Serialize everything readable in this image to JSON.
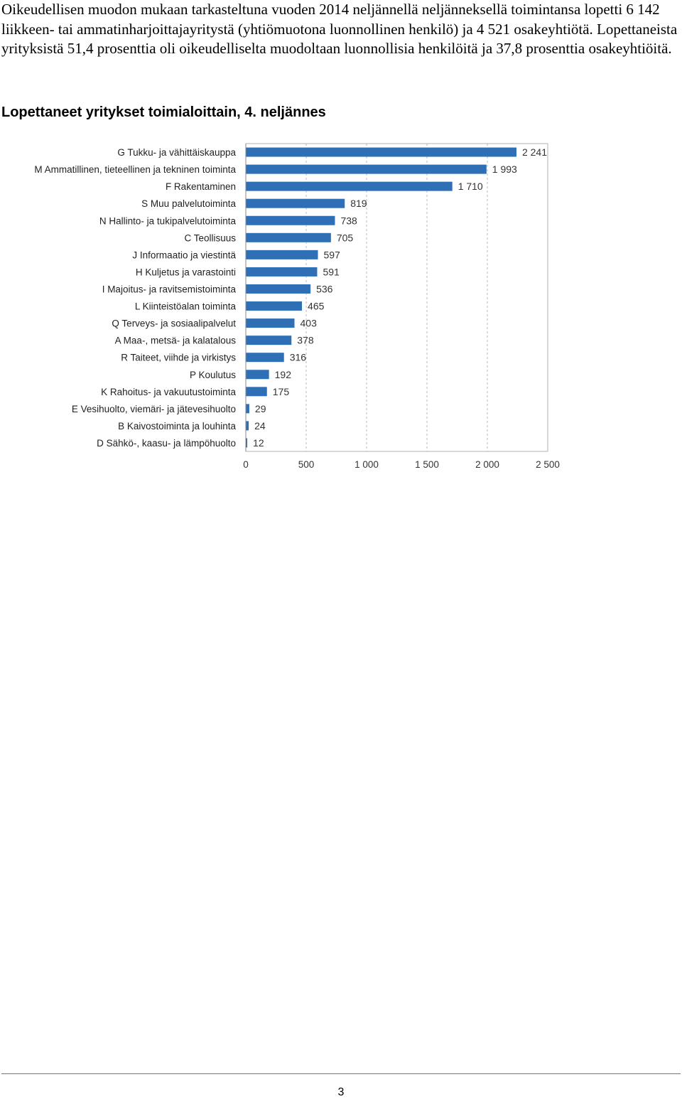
{
  "intro_text": "Oikeudellisen muodon mukaan tarkasteltuna vuoden 2014 neljännellä neljänneksellä toimintansa lopetti 6 142 liikkeen- tai ammatinharjoittajayritystä (yhtiömuotona luonnollinen henkilö) ja 4 521 osakeyhtiötä. Lopettaneista yrityksistä 51,4 prosenttia oli oikeudelliselta muodoltaan luonnollisia henkilöitä ja 37,8 prosenttia osakeyhtiöitä.",
  "chart_heading": "Lopettaneet yritykset toimialoittain, 4. neljännes",
  "page_number": "3",
  "chart_data": {
    "type": "bar",
    "orientation": "horizontal",
    "bar_color": "#2f6fb5",
    "grid": true,
    "xlim": [
      0,
      2500
    ],
    "x_ticks": [
      "0",
      "500",
      "1 000",
      "1 500",
      "2 000",
      "2 500"
    ],
    "x_tick_values": [
      0,
      500,
      1000,
      1500,
      2000,
      2500
    ],
    "categories": [
      "G Tukku- ja vähittäiskauppa",
      "M Ammatillinen, tieteellinen ja tekninen toiminta",
      "F Rakentaminen",
      "S Muu palvelutoiminta",
      "N Hallinto- ja tukipalvelutoiminta",
      "C Teollisuus",
      "J Informaatio ja viestintä",
      "H Kuljetus ja varastointi",
      "I Majoitus- ja ravitsemistoiminta",
      "L Kiinteistöalan toiminta",
      "Q Terveys- ja sosiaalipalvelut",
      "A Maa-, metsä- ja kalatalous",
      "R Taiteet, viihde ja virkistys",
      "P Koulutus",
      "K Rahoitus- ja vakuutustoiminta",
      "E Vesihuolto, viemäri- ja jätevesihuolto",
      "B Kaivostoiminta ja louhinta",
      "D Sähkö-, kaasu- ja lämpöhuolto"
    ],
    "values": [
      2241,
      1993,
      1710,
      819,
      738,
      705,
      597,
      591,
      536,
      465,
      403,
      378,
      316,
      192,
      175,
      29,
      24,
      12
    ],
    "value_labels": [
      "2 241",
      "1 993",
      "1 710",
      "819",
      "738",
      "705",
      "597",
      "591",
      "536",
      "465",
      "403",
      "378",
      "316",
      "192",
      "175",
      "29",
      "24",
      "12"
    ]
  }
}
